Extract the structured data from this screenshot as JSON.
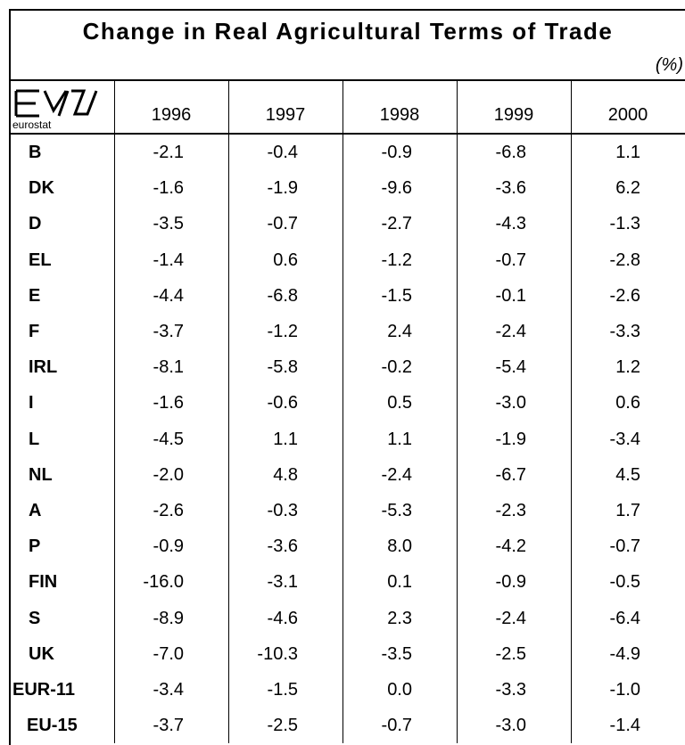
{
  "title": "Change in Real Agricultural Terms of Trade",
  "unit": "(%)",
  "logo_text": "eurostat",
  "table": {
    "columns": [
      "1996",
      "1997",
      "1998",
      "1999",
      "2000"
    ],
    "rows": [
      [
        "B",
        "-2.1",
        "-0.4",
        "-0.9",
        "-6.8",
        "1.1"
      ],
      [
        "DK",
        "-1.6",
        "-1.9",
        "-9.6",
        "-3.6",
        "6.2"
      ],
      [
        "D",
        "-3.5",
        "-0.7",
        "-2.7",
        "-4.3",
        "-1.3"
      ],
      [
        "EL",
        "-1.4",
        "0.6",
        "-1.2",
        "-0.7",
        "-2.8"
      ],
      [
        "E",
        "-4.4",
        "-6.8",
        "-1.5",
        "-0.1",
        "-2.6"
      ],
      [
        "F",
        "-3.7",
        "-1.2",
        "2.4",
        "-2.4",
        "-3.3"
      ],
      [
        "IRL",
        "-8.1",
        "-5.8",
        "-0.2",
        "-5.4",
        "1.2"
      ],
      [
        "I",
        "-1.6",
        "-0.6",
        "0.5",
        "-3.0",
        "0.6"
      ],
      [
        "L",
        "-4.5",
        "1.1",
        "1.1",
        "-1.9",
        "-3.4"
      ],
      [
        "NL",
        "-2.0",
        "4.8",
        "-2.4",
        "-6.7",
        "4.5"
      ],
      [
        "A",
        "-2.6",
        "-0.3",
        "-5.3",
        "-2.3",
        "1.7"
      ],
      [
        "P",
        "-0.9",
        "-3.6",
        "8.0",
        "-4.2",
        "-0.7"
      ],
      [
        "FIN",
        "-16.0",
        "-3.1",
        "0.1",
        "-0.9",
        "-0.5"
      ],
      [
        "S",
        "-8.9",
        "-4.6",
        "2.3",
        "-2.4",
        "-6.4"
      ],
      [
        "UK",
        "-7.0",
        "-10.3",
        "-3.5",
        "-2.5",
        "-4.9"
      ],
      [
        "EUR-11",
        "-3.4",
        "-1.5",
        "0.0",
        "-3.3",
        "-1.0"
      ],
      [
        "EU-15",
        "-3.7",
        "-2.5",
        "-0.7",
        "-3.0",
        "-1.4"
      ]
    ]
  }
}
